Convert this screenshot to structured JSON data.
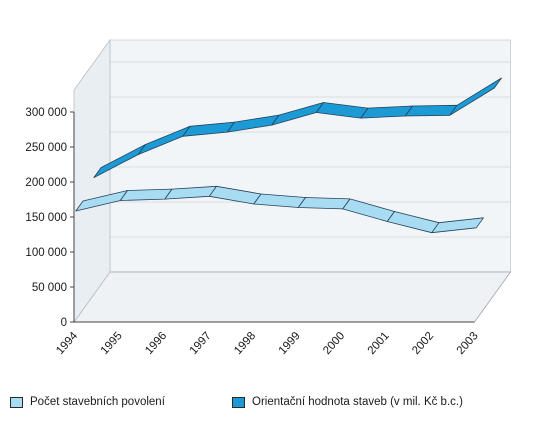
{
  "chart_data": {
    "type": "area",
    "title": "",
    "xlabel": "",
    "ylabel": "",
    "categories": [
      "1994",
      "1995",
      "1996",
      "1997",
      "1998",
      "1999",
      "2000",
      "2001",
      "2002",
      "2003"
    ],
    "ylim": [
      0,
      300000
    ],
    "yticks": [
      0,
      50000,
      100000,
      150000,
      200000,
      250000,
      300000
    ],
    "ytick_labels": [
      "0",
      "50 000",
      "100 000",
      "150 000",
      "200 000",
      "250 000",
      "300 000"
    ],
    "grid": true,
    "legend_position": "bottom",
    "series": [
      {
        "name": "Počet stavebních povolení",
        "color": "#a8dcf2",
        "values": [
          155000,
          170000,
          172000,
          176000,
          165000,
          160000,
          158000,
          140000,
          124000,
          131000
        ]
      },
      {
        "name": "Orientační hodnota staveb (v mil. Kč b.c.)",
        "color": "#1b9ad6",
        "values": [
          167000,
          200000,
          226000,
          232000,
          242000,
          260000,
          252000,
          255000,
          256000,
          295000
        ]
      }
    ]
  }
}
